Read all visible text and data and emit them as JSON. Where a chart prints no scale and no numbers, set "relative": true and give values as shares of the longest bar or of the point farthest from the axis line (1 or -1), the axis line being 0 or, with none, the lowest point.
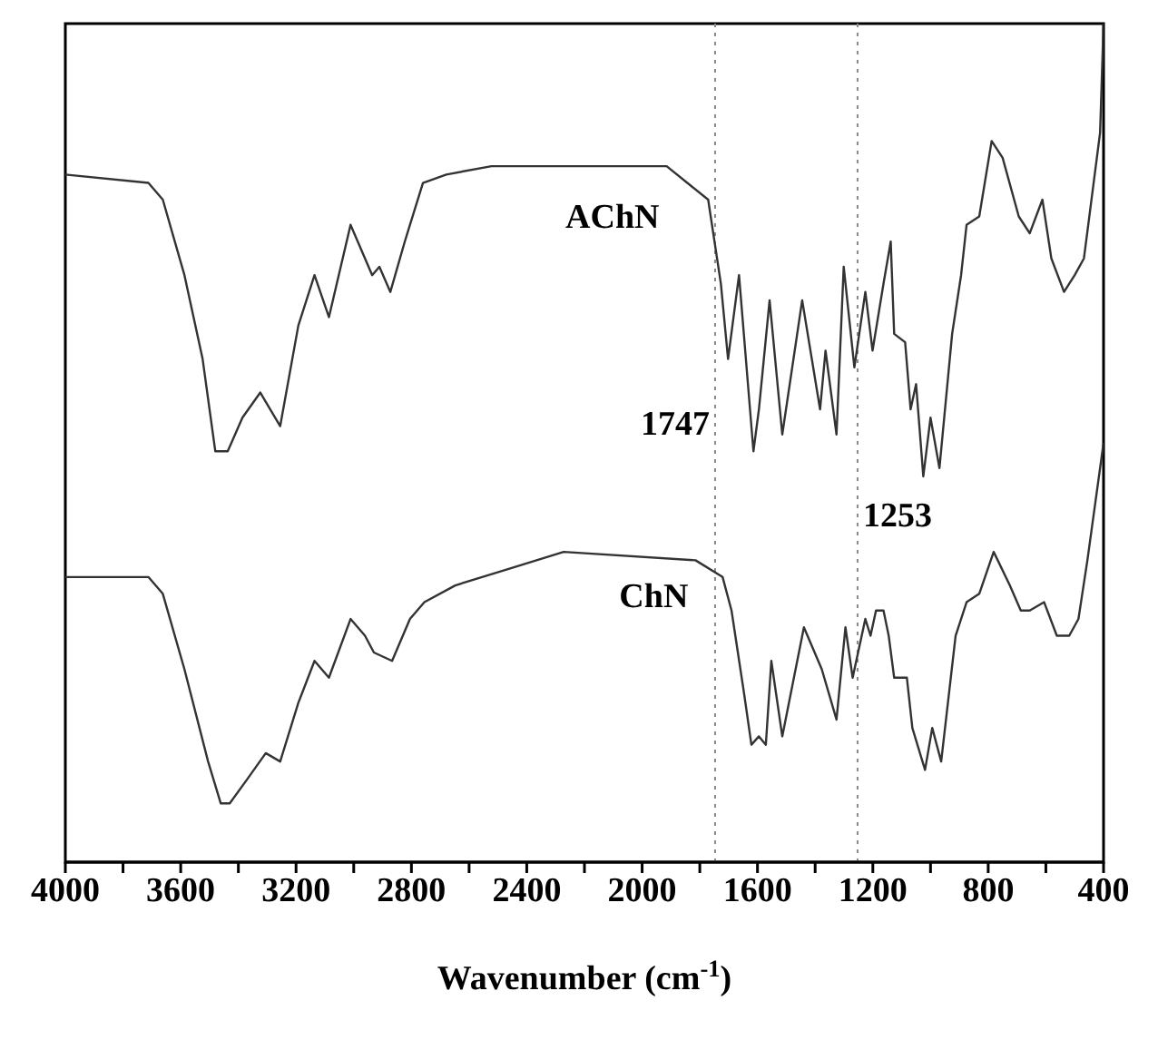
{
  "chart_data": {
    "type": "line",
    "relative": true,
    "xlabel": "Wavenumber (cm$^{-1}$)",
    "xlim": [
      4000,
      400
    ],
    "xticks": [
      4000,
      {
        "value": 3800,
        "label": null
      },
      3600,
      {
        "value": 3400,
        "label": null
      },
      3200,
      {
        "value": 3000,
        "label": null
      },
      2800,
      {
        "value": 2600,
        "label": null
      },
      2400,
      {
        "value": 2200,
        "label": null
      },
      2000,
      {
        "value": 1800,
        "label": null
      },
      1600,
      {
        "value": 1400,
        "label": null
      },
      1200,
      {
        "value": 1000,
        "label": null
      },
      800,
      {
        "value": 600,
        "label": null
      },
      400
    ],
    "grid": false,
    "legend": false,
    "marker": "none",
    "line_style": "solid",
    "series": [
      {
        "name": "AChN",
        "color": "#333333",
        "x": [
          4000,
          3712,
          3662,
          3587,
          3524,
          3480,
          3437,
          3386,
          3324,
          3255,
          3192,
          3136,
          3086,
          3011,
          2961,
          2936,
          2911,
          2873,
          2823,
          2760,
          2679,
          2522,
          2334,
          1915,
          1771,
          1727,
          1702,
          1664,
          1614,
          1595,
          1558,
          1514,
          1445,
          1383,
          1364,
          1326,
          1301,
          1264,
          1226,
          1201,
          1163,
          1138,
          1126,
          1088,
          1069,
          1050,
          1025,
          1000,
          969,
          925,
          894,
          875,
          831,
          788,
          750,
          694,
          656,
          612,
          581,
          537,
          500,
          468,
          412,
          400
        ],
        "values": [
          0.82,
          0.81,
          0.79,
          0.7,
          0.6,
          0.49,
          0.49,
          0.53,
          0.56,
          0.52,
          0.64,
          0.7,
          0.65,
          0.76,
          0.72,
          0.7,
          0.71,
          0.68,
          0.74,
          0.81,
          0.82,
          0.83,
          0.83,
          0.83,
          0.79,
          0.69,
          0.6,
          0.7,
          0.49,
          0.54,
          0.67,
          0.51,
          0.67,
          0.54,
          0.61,
          0.51,
          0.71,
          0.59,
          0.68,
          0.61,
          0.69,
          0.74,
          0.63,
          0.62,
          0.54,
          0.57,
          0.46,
          0.53,
          0.47,
          0.63,
          0.7,
          0.76,
          0.77,
          0.86,
          0.84,
          0.77,
          0.75,
          0.79,
          0.72,
          0.68,
          0.7,
          0.72,
          0.87,
          1
        ]
      },
      {
        "name": "ChN",
        "color": "#333333",
        "x": [
          4000,
          3712,
          3662,
          3587,
          3505,
          3461,
          3430,
          3367,
          3305,
          3255,
          3192,
          3136,
          3086,
          3011,
          2961,
          2930,
          2867,
          2805,
          2755,
          2648,
          2460,
          2272,
          1815,
          1721,
          1690,
          1646,
          1621,
          1595,
          1571,
          1552,
          1514,
          1439,
          1377,
          1326,
          1295,
          1270,
          1226,
          1208,
          1189,
          1163,
          1145,
          1126,
          1082,
          1063,
          1019,
          994,
          963,
          913,
          875,
          831,
          781,
          725,
          687,
          656,
          606,
          562,
          519,
          487,
          456,
          400
        ],
        "values": [
          0.34,
          0.34,
          0.32,
          0.23,
          0.12,
          0.07,
          0.07,
          0.1,
          0.13,
          0.12,
          0.19,
          0.24,
          0.22,
          0.29,
          0.27,
          0.25,
          0.24,
          0.29,
          0.31,
          0.33,
          0.35,
          0.37,
          0.36,
          0.34,
          0.3,
          0.2,
          0.14,
          0.15,
          0.14,
          0.24,
          0.15,
          0.28,
          0.23,
          0.17,
          0.28,
          0.22,
          0.29,
          0.27,
          0.3,
          0.3,
          0.27,
          0.22,
          0.22,
          0.16,
          0.11,
          0.16,
          0.12,
          0.27,
          0.31,
          0.32,
          0.37,
          0.33,
          0.3,
          0.3,
          0.31,
          0.27,
          0.27,
          0.29,
          0.36,
          0.5
        ]
      }
    ],
    "ref_lines": [
      {
        "axis": "x",
        "value": 1747,
        "label": "1747",
        "color": "#888888",
        "line_style": "dotted"
      },
      {
        "axis": "x",
        "value": 1253,
        "label": "1253",
        "color": "#888888",
        "line_style": "dotted"
      }
    ]
  }
}
